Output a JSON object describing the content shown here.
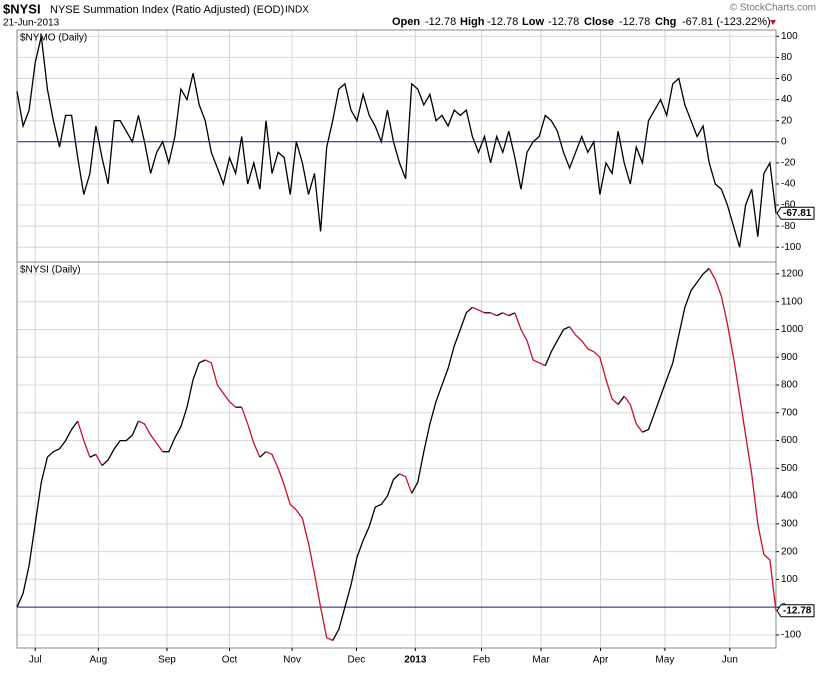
{
  "header": {
    "symbol": "$NYSI",
    "name": "NYSE Summation Index (Ratio Adjusted) (EOD)",
    "exchange": "INDX",
    "date": "21-Jun-2013",
    "open_label": "Open",
    "open": "-12.78",
    "high_label": "High",
    "high": "-12.78",
    "low_label": "Low",
    "low": "-12.78",
    "close_label": "Close",
    "close": "-12.78",
    "chg_label": "Chg",
    "chg": "-67.81 (-123.22%)",
    "credit": "© StockCharts.com"
  },
  "chart_data": [
    {
      "type": "line",
      "title": "$NYMO (Daily)",
      "color": "#000000",
      "zero_color": "#1a1a6e",
      "grid": true,
      "xlim": [
        0,
        125
      ],
      "ylim": [
        -114,
        106
      ],
      "yticks": [
        100,
        80,
        60,
        40,
        20,
        0,
        -20,
        -40,
        -60,
        -80,
        -100
      ],
      "values": [
        48,
        15,
        30,
        75,
        100,
        50,
        20,
        -5,
        25,
        25,
        -15,
        -50,
        -30,
        15,
        -15,
        -40,
        20,
        20,
        10,
        0,
        25,
        0,
        -30,
        -10,
        0,
        -20,
        5,
        50,
        40,
        65,
        35,
        20,
        -10,
        -25,
        -40,
        -15,
        -30,
        5,
        -40,
        -20,
        -45,
        20,
        -30,
        -10,
        -15,
        -50,
        0,
        -20,
        -50,
        -30,
        -85,
        -5,
        20,
        50,
        55,
        30,
        20,
        45,
        25,
        15,
        0,
        30,
        0,
        -20,
        -35,
        55,
        50,
        35,
        45,
        20,
        25,
        15,
        30,
        25,
        30,
        5,
        -10,
        5,
        -20,
        5,
        -10,
        10,
        -15,
        -45,
        -10,
        0,
        5,
        25,
        20,
        10,
        -10,
        -25,
        -10,
        5,
        -10,
        0,
        -50,
        -20,
        -30,
        10,
        -20,
        -40,
        -5,
        -20,
        20,
        30,
        40,
        25,
        55,
        60,
        35,
        20,
        5,
        15,
        -20,
        -40,
        -45,
        -60,
        -80,
        -100,
        -60,
        -45,
        -90,
        -30,
        -20,
        -67.81
      ]
    },
    {
      "type": "line",
      "title": "$NYSI (Daily)",
      "up_color": "#000000",
      "down_color": "#c8102e",
      "zero_color": "#1a1a6e",
      "grid": true,
      "xlim": [
        0,
        125
      ],
      "ylim": [
        -147,
        1243
      ],
      "yticks": [
        1200,
        1100,
        1000,
        900,
        800,
        700,
        600,
        500,
        400,
        300,
        200,
        100,
        0,
        -100
      ],
      "xticks": [
        {
          "value": 3,
          "label": "Jul"
        },
        {
          "value": 13.4,
          "label": "Aug"
        },
        {
          "value": 24.7,
          "label": "Sep"
        },
        {
          "value": 35,
          "label": "Oct"
        },
        {
          "value": 45.3,
          "label": "Nov"
        },
        {
          "value": 55.9,
          "label": "Dec"
        },
        {
          "value": 65.6,
          "label": "2013"
        },
        {
          "value": 76.5,
          "label": "Feb"
        },
        {
          "value": 86.3,
          "label": "Mar"
        },
        {
          "value": 96.1,
          "label": "Apr"
        },
        {
          "value": 106.7,
          "label": "May"
        },
        {
          "value": 117.4,
          "label": "Jun"
        }
      ],
      "values": [
        0,
        50,
        150,
        300,
        450,
        540,
        560,
        570,
        600,
        640,
        670,
        600,
        540,
        550,
        510,
        530,
        570,
        600,
        600,
        620,
        670,
        660,
        620,
        590,
        560,
        560,
        610,
        650,
        720,
        820,
        880,
        890,
        880,
        800,
        770,
        740,
        720,
        720,
        660,
        590,
        540,
        560,
        550,
        500,
        440,
        370,
        350,
        320,
        230,
        120,
        0,
        -110,
        -120,
        -80,
        0,
        80,
        180,
        240,
        290,
        360,
        370,
        400,
        460,
        480,
        470,
        410,
        450,
        560,
        660,
        740,
        800,
        860,
        940,
        1000,
        1060,
        1080,
        1070,
        1060,
        1060,
        1050,
        1060,
        1050,
        1060,
        1000,
        960,
        890,
        880,
        870,
        920,
        960,
        1000,
        1010,
        980,
        960,
        930,
        920,
        900,
        820,
        750,
        730,
        760,
        730,
        660,
        630,
        640,
        700,
        760,
        820,
        880,
        980,
        1080,
        1140,
        1170,
        1200,
        1220,
        1180,
        1120,
        1020,
        900,
        760,
        620,
        480,
        300,
        190,
        170,
        -12.78
      ]
    }
  ]
}
